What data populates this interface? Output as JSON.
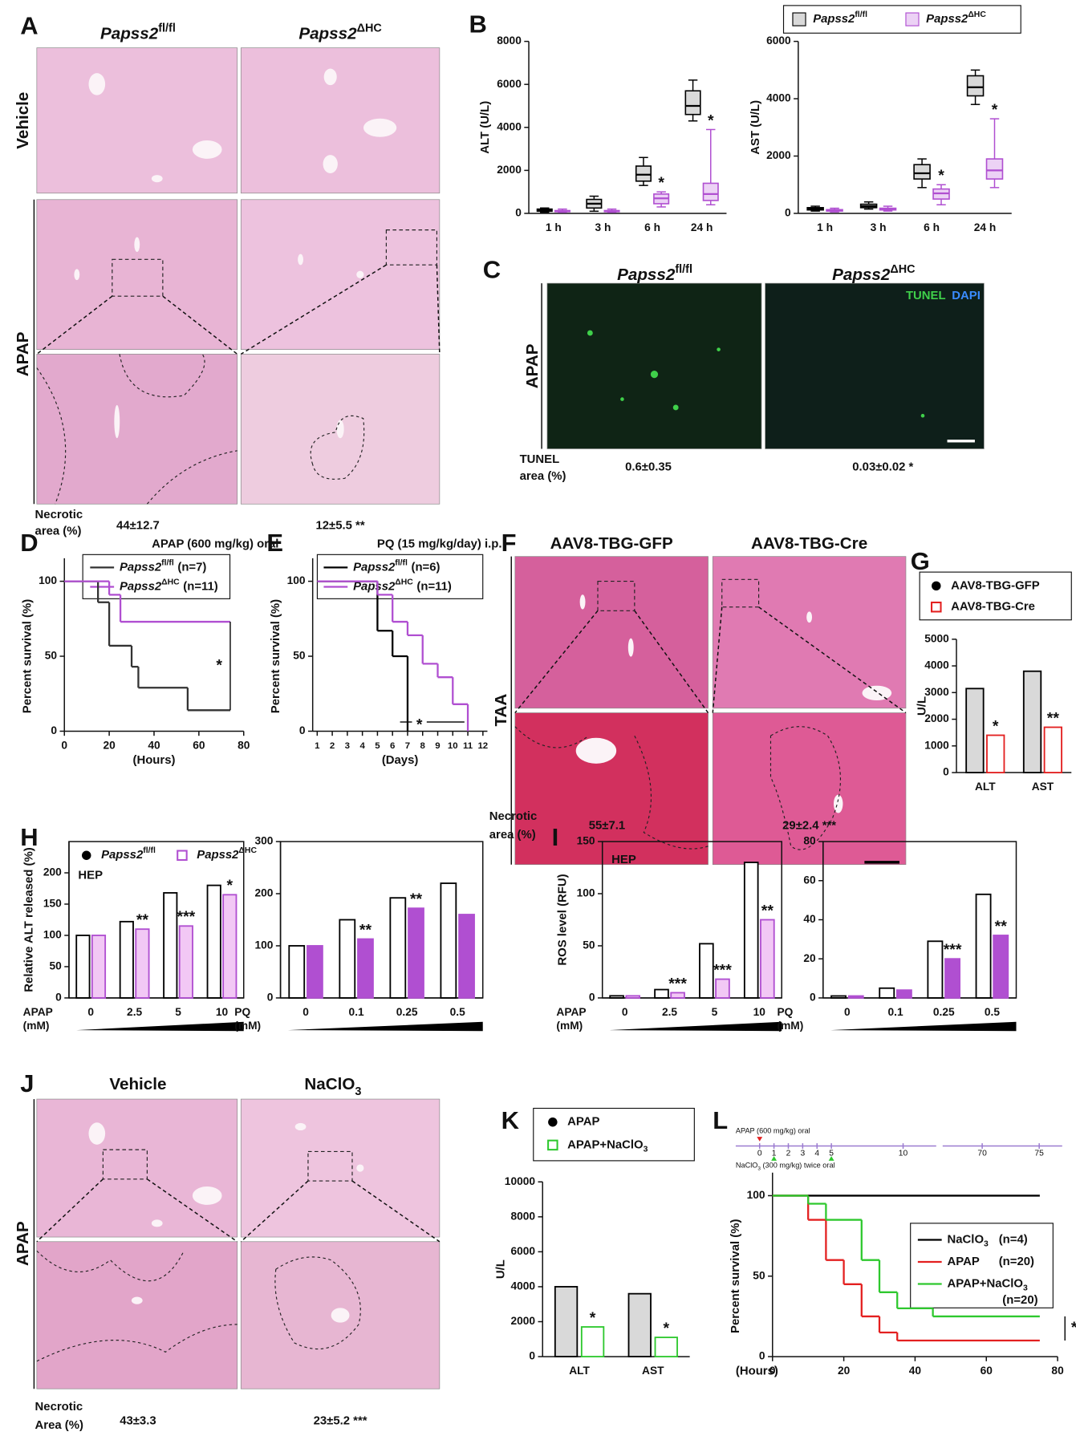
{
  "panel_labels": [
    "A",
    "B",
    "C",
    "D",
    "E",
    "F",
    "G",
    "H",
    "I",
    "J",
    "K",
    "L"
  ],
  "genotype": [
    {
      "name": "Papss2",
      "sup": "fl/fl"
    },
    {
      "name": "Papss2",
      "sup": "ΔHC"
    }
  ],
  "A": {
    "rows": [
      "Vehicle",
      "APAP"
    ],
    "metric": [
      "Necrotic",
      "area (%)"
    ],
    "results": [
      "44±12.7",
      "12±5.5 **"
    ]
  },
  "C": {
    "row": "APAP",
    "stain": [
      "TUNEL",
      "DAPI"
    ],
    "metric": [
      "TUNEL",
      "area (%)"
    ],
    "results": [
      "0.6±0.35",
      "0.03±0.02 *"
    ]
  },
  "F": {
    "headers": [
      "AAV8-TBG-GFP",
      "AAV8-TBG-Cre"
    ],
    "row": "TAA",
    "metric": [
      "Necrotic",
      "area (%)"
    ],
    "results": [
      "55±7.1",
      "29±2.4 ***"
    ]
  },
  "J": {
    "headers": [
      {
        "name": "Vehicle"
      },
      {
        "name": "NaClO",
        "sub": "3"
      }
    ],
    "row": "APAP",
    "metric": [
      "Necrotic",
      "Area (%)"
    ],
    "results": [
      "43±3.3",
      "23±5.2 ***"
    ]
  },
  "L_timeline": {
    "top": "APAP (600 mg/kg) oral",
    "bottom": {
      "name": "NaClO",
      "sub": "3",
      "rest": " (300 mg/kg) twice oral"
    },
    "ticks": [
      0,
      1,
      2,
      3,
      4,
      5,
      10,
      70,
      75
    ]
  },
  "chart_data": [
    {
      "type": "box",
      "ylabel": "ALT (U/L)",
      "categories": [
        "1 h",
        "3 h",
        "6 h",
        "24 h"
      ],
      "ylim": [
        0,
        8000
      ],
      "yticks": [
        0,
        2000,
        4000,
        6000,
        8000
      ],
      "series": [
        {
          "name": "Papss2",
          "sup": "fl/fl",
          "color": "#000000",
          "fill": "#d9d9d9",
          "marker": "box",
          "min": [
            50,
            100,
            1300,
            4300
          ],
          "q1": [
            100,
            250,
            1500,
            4600
          ],
          "median": [
            150,
            450,
            1800,
            5000
          ],
          "q3": [
            200,
            650,
            2200,
            5700
          ],
          "max": [
            250,
            800,
            2600,
            6200
          ]
        },
        {
          "name": "Papss2",
          "sup": "ΔHC",
          "color": "#b04fd1",
          "fill": "#ecd2f5",
          "marker": "box",
          "min": [
            50,
            50,
            300,
            400
          ],
          "q1": [
            80,
            80,
            450,
            600
          ],
          "median": [
            100,
            100,
            700,
            900
          ],
          "q3": [
            130,
            130,
            900,
            1400
          ],
          "max": [
            200,
            200,
            1000,
            3900
          ],
          "significance": [
            null,
            null,
            "*",
            "*"
          ]
        }
      ]
    },
    {
      "type": "box",
      "ylabel": "AST (U/L)",
      "categories": [
        "1 h",
        "3 h",
        "6 h",
        "24 h"
      ],
      "ylim": [
        0,
        6000
      ],
      "yticks": [
        0,
        2000,
        4000,
        6000
      ],
      "series": [
        {
          "color": "#000000",
          "fill": "#d9d9d9",
          "min": [
            80,
            150,
            900,
            3800
          ],
          "q1": [
            120,
            200,
            1200,
            4100
          ],
          "median": [
            150,
            250,
            1400,
            4400
          ],
          "q3": [
            200,
            320,
            1700,
            4800
          ],
          "max": [
            250,
            400,
            1900,
            5000
          ]
        },
        {
          "color": "#b04fd1",
          "fill": "#ecd2f5",
          "min": [
            50,
            80,
            300,
            900
          ],
          "q1": [
            80,
            120,
            500,
            1200
          ],
          "median": [
            100,
            150,
            700,
            1500
          ],
          "q3": [
            130,
            180,
            850,
            1900
          ],
          "max": [
            180,
            250,
            1000,
            3300
          ],
          "significance": [
            null,
            null,
            "*",
            "*"
          ]
        }
      ]
    },
    {
      "type": "survival",
      "title": "APAP (600 mg/kg) oral",
      "ylabel": "Percent survival (%)",
      "xlabel": "(Hours)",
      "xlim": [
        0,
        80
      ],
      "xticks": [
        0,
        20,
        40,
        60,
        80
      ],
      "ylim": [
        0,
        100
      ],
      "yticks": [
        0,
        50,
        100
      ],
      "significance": "*",
      "series": [
        {
          "name": "Papss2",
          "sup": "fl/fl",
          "n_label": "(n=7)",
          "color": "#333333",
          "x": [
            0,
            15,
            20,
            30,
            33,
            55,
            74
          ],
          "values": [
            100,
            86,
            57,
            43,
            29,
            14,
            14
          ]
        },
        {
          "name": "Papss2",
          "sup": "ΔHC",
          "n_label": "(n=11)",
          "color": "#b04fd1",
          "x": [
            0,
            20,
            25,
            74
          ],
          "values": [
            100,
            91,
            73,
            73
          ]
        }
      ]
    },
    {
      "type": "survival",
      "title": "PQ (15 mg/kg/day) i.p.",
      "ylabel": "Percent survival (%)",
      "xlabel": "(Days)",
      "xlim": [
        0.7,
        12.3
      ],
      "xticks": [
        1,
        2,
        3,
        4,
        5,
        6,
        7,
        8,
        9,
        10,
        11,
        12
      ],
      "ylim": [
        0,
        100
      ],
      "yticks": [
        0,
        50,
        100
      ],
      "significance": "*",
      "series": [
        {
          "name": "Papss2",
          "sup": "fl/fl",
          "n_label": "(n=6)",
          "color": "#000000",
          "x": [
            1,
            5,
            6,
            7
          ],
          "values": [
            100,
            67,
            50,
            0
          ]
        },
        {
          "name": "Papss2",
          "sup": "ΔHC",
          "n_label": "(n=11)",
          "color": "#b04fd1",
          "x": [
            1,
            5,
            6,
            7,
            8,
            9,
            10,
            11
          ],
          "values": [
            100,
            91,
            73,
            64,
            45,
            36,
            18,
            0
          ]
        }
      ]
    },
    {
      "type": "bar",
      "ylabel": "U/L",
      "categories": [
        "ALT",
        "AST"
      ],
      "ylim": [
        0,
        5000
      ],
      "yticks": [
        0,
        1000,
        2000,
        3000,
        4000,
        5000
      ],
      "series": [
        {
          "name": "AAV8-TBG-GFP",
          "color": "#000000",
          "fill": "#d9d9d9",
          "marker": "circle",
          "values": [
            3150,
            3800
          ]
        },
        {
          "name": "AAV8-TBG-Cre",
          "color": "#e32020",
          "fill": "#ffffff",
          "marker": "square",
          "values": [
            1400,
            1700
          ],
          "significance": [
            "*",
            "**"
          ]
        }
      ]
    },
    {
      "type": "bar",
      "ylabel": "Relative ALT released (%)",
      "annotation": "HEP",
      "xlabel": [
        "APAP",
        "(mM)"
      ],
      "categories": [
        "0",
        "2.5",
        "5",
        "10"
      ],
      "ylim": [
        0,
        250
      ],
      "yticks": [
        0,
        50,
        100,
        150,
        200
      ],
      "series": [
        {
          "name": "Papss2",
          "sup": "fl/fl",
          "color": "#000000",
          "fill": "#ffffff",
          "marker": "circle",
          "values": [
            100,
            122,
            168,
            180
          ]
        },
        {
          "name": "Papss2",
          "sup": "ΔHC",
          "color": "#b04fd1",
          "fill": "#f2c8f5",
          "marker": "square",
          "values": [
            100,
            110,
            115,
            165
          ],
          "significance": [
            null,
            "**",
            "***",
            "*"
          ]
        }
      ]
    },
    {
      "type": "bar",
      "xlabel": [
        "PQ",
        "(mM)"
      ],
      "categories": [
        "0",
        "0.1",
        "0.25",
        "0.5"
      ],
      "ylim": [
        0,
        300
      ],
      "yticks": [
        0,
        100,
        200,
        300
      ],
      "series": [
        {
          "color": "#000000",
          "fill": "#ffffff",
          "values": [
            100,
            150,
            192,
            220
          ]
        },
        {
          "color": "#b04fd1",
          "fill": "#b04fd1",
          "values": [
            100,
            113,
            172,
            160
          ],
          "significance": [
            null,
            "**",
            "**",
            null
          ]
        }
      ]
    },
    {
      "type": "bar",
      "ylabel": "ROS level (RFU)",
      "annotation": "HEP",
      "xlabel": [
        "APAP",
        "(mM)"
      ],
      "categories": [
        "0",
        "2.5",
        "5",
        "10"
      ],
      "ylim": [
        0,
        150
      ],
      "yticks": [
        0,
        50,
        100,
        150
      ],
      "series": [
        {
          "color": "#000000",
          "fill": "#ffffff",
          "values": [
            2,
            8,
            52,
            130
          ]
        },
        {
          "color": "#b04fd1",
          "fill": "#f2c8f5",
          "values": [
            2,
            5,
            18,
            75
          ],
          "significance": [
            null,
            "***",
            "***",
            "**"
          ]
        }
      ]
    },
    {
      "type": "bar",
      "xlabel": [
        "PQ",
        "(mM)"
      ],
      "categories": [
        "0",
        "0.1",
        "0.25",
        "0.5"
      ],
      "ylim": [
        0,
        80
      ],
      "yticks": [
        0,
        20,
        40,
        60,
        80
      ],
      "series": [
        {
          "color": "#000000",
          "fill": "#ffffff",
          "values": [
            1,
            5,
            29,
            53
          ]
        },
        {
          "color": "#b04fd1",
          "fill": "#b04fd1",
          "values": [
            1,
            4,
            20,
            32
          ],
          "significance": [
            null,
            null,
            "***",
            "**"
          ]
        }
      ]
    },
    {
      "type": "bar",
      "ylabel": "U/L",
      "categories": [
        "ALT",
        "AST"
      ],
      "ylim": [
        0,
        10000
      ],
      "yticks": [
        0,
        2000,
        4000,
        6000,
        8000,
        10000
      ],
      "series": [
        {
          "name": "APAP",
          "color": "#000000",
          "fill": "#d9d9d9",
          "marker": "circle",
          "values": [
            4000,
            3600
          ]
        },
        {
          "name": "APAP+NaClO",
          "sub": "3",
          "color": "#2ec82e",
          "fill": "#ffffff",
          "marker": "square",
          "values": [
            1700,
            1100
          ],
          "significance": [
            "*",
            "*"
          ]
        }
      ]
    },
    {
      "type": "survival",
      "ylabel": "Percent survival (%)",
      "xlabel": "(Hours)",
      "xlim": [
        0,
        80
      ],
      "xticks": [
        0,
        20,
        40,
        60,
        80
      ],
      "ylim": [
        0,
        100
      ],
      "yticks": [
        0,
        50,
        100
      ],
      "significance": "*",
      "series": [
        {
          "name": "NaClO",
          "sub": "3",
          "n_label": "(n=4)",
          "color": "#000000",
          "x": [
            0,
            75
          ],
          "values": [
            100,
            100
          ]
        },
        {
          "name": "APAP",
          "n_label": "(n=20)",
          "color": "#e32020",
          "x": [
            0,
            10,
            15,
            20,
            25,
            30,
            35,
            75
          ],
          "values": [
            100,
            85,
            60,
            45,
            25,
            15,
            10,
            10
          ]
        },
        {
          "name": "APAP+NaClO",
          "sub": "3",
          "n_label": "(n=20)",
          "color": "#2ec82e",
          "x": [
            0,
            10,
            15,
            25,
            30,
            35,
            45,
            75
          ],
          "values": [
            100,
            95,
            85,
            60,
            40,
            30,
            25,
            25
          ]
        }
      ]
    }
  ]
}
